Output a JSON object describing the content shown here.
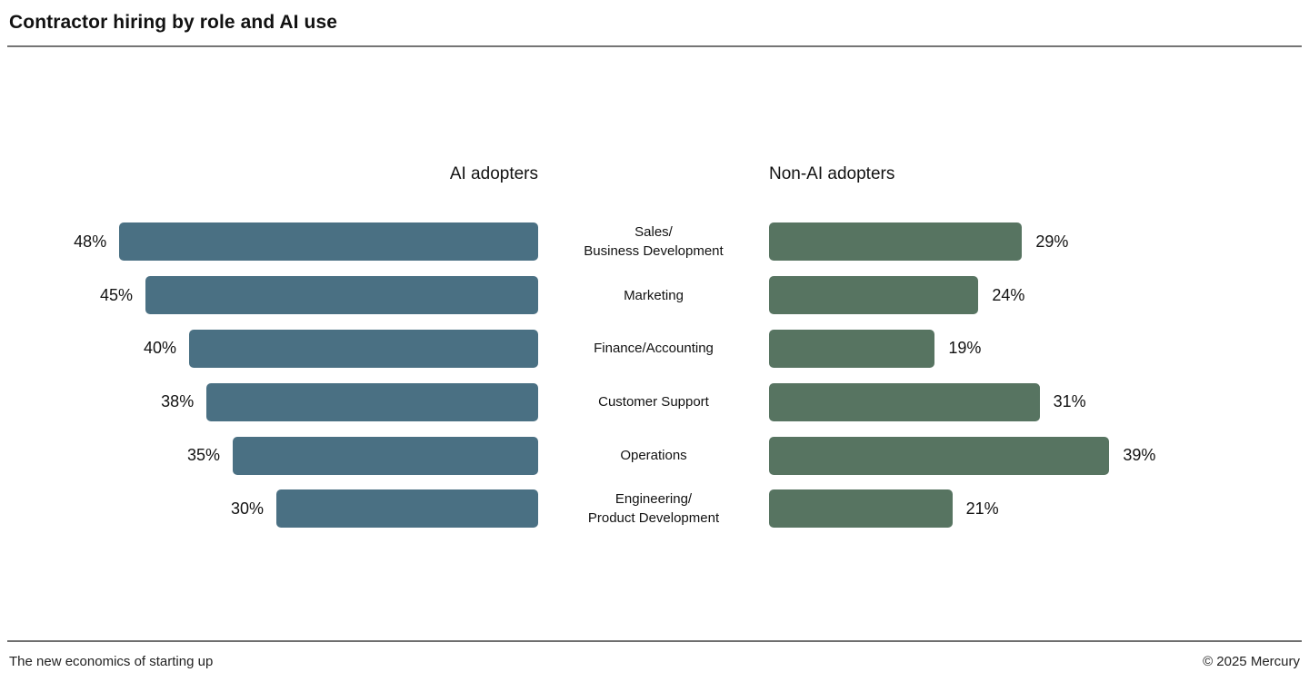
{
  "header": {
    "title": "Contractor hiring by role and AI use"
  },
  "chart_data": {
    "type": "bar",
    "orientation": "horizontal-diverging",
    "title": "Contractor hiring by role and AI use",
    "categories": [
      "Sales/\nBusiness Development",
      "Marketing",
      "Finance/Accounting",
      "Customer Support",
      "Operations",
      "Engineering/\nProduct Development"
    ],
    "series": [
      {
        "name": "AI adopters",
        "side": "left",
        "color": "#4a7083",
        "values": [
          48,
          45,
          40,
          38,
          35,
          30
        ]
      },
      {
        "name": "Non-AI adopters",
        "side": "right",
        "color": "#577461",
        "values": [
          29,
          24,
          19,
          31,
          39,
          21
        ]
      }
    ],
    "value_suffix": "%",
    "xlim": [
      0,
      50
    ],
    "grid": false,
    "legend_position": "column-headers"
  },
  "footer": {
    "left": "The new economics of starting up",
    "right": "© 2025 Mercury"
  }
}
